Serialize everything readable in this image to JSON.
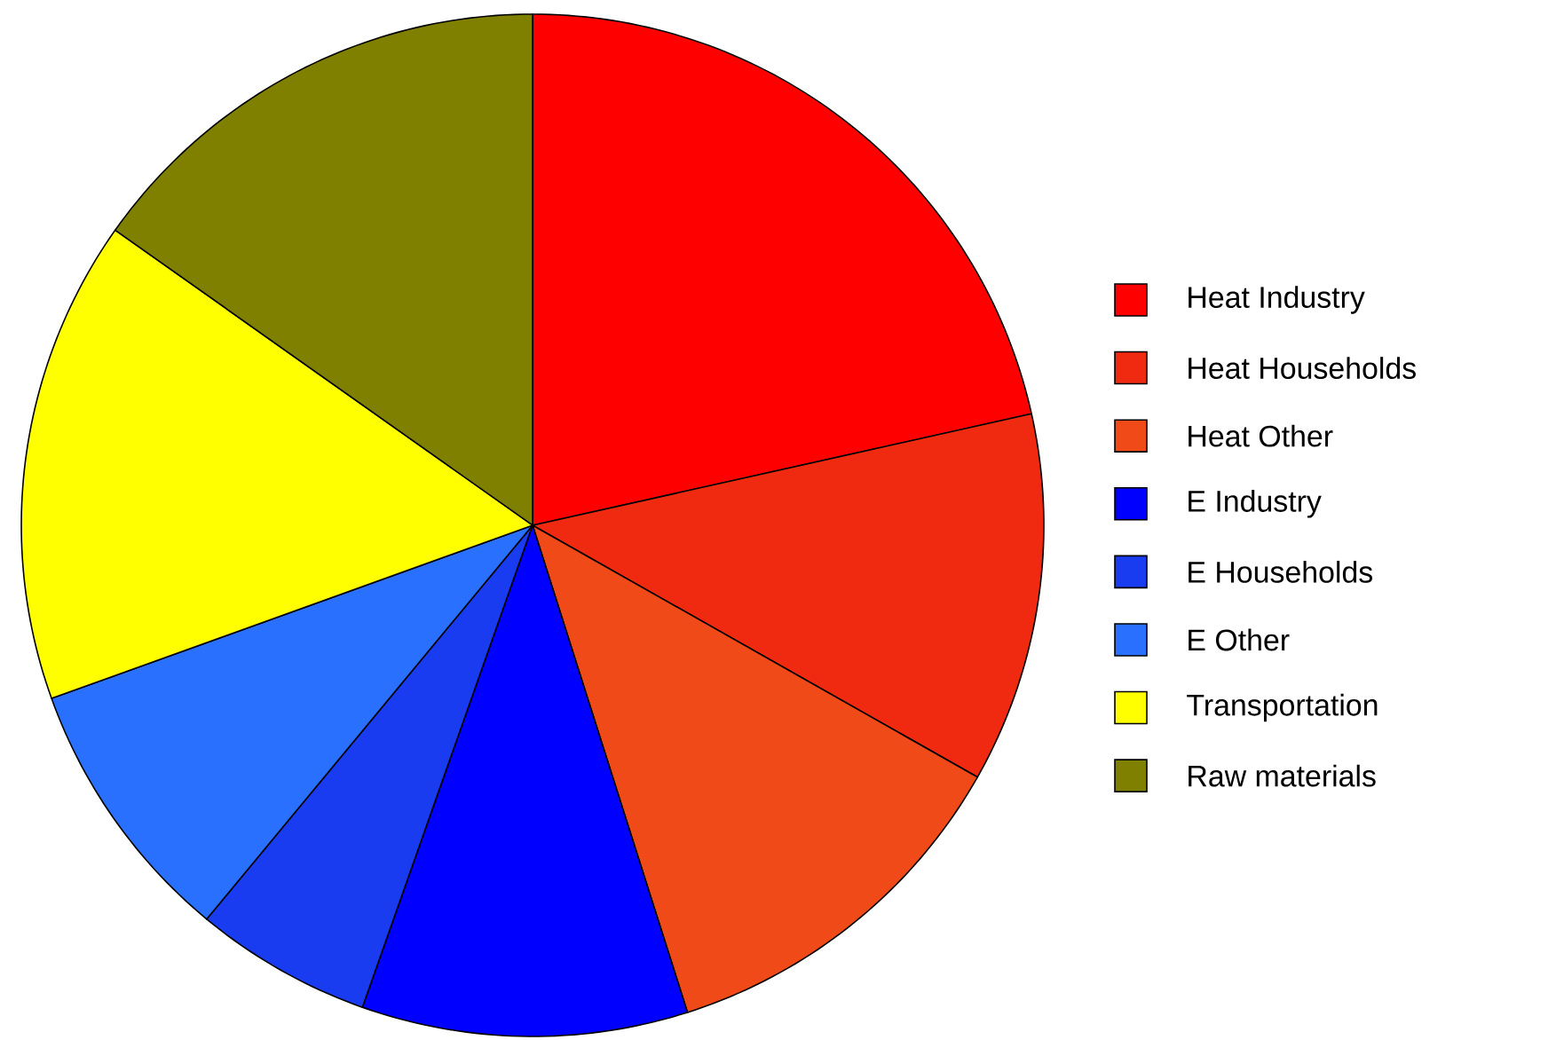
{
  "chart_data": {
    "type": "pie",
    "categories": [
      "Heat Industry",
      "Heat Households",
      "Heat Other",
      "E Industry",
      "E Households",
      "E Other",
      "Transportation",
      "Raw materials"
    ],
    "values": [
      21.5,
      11.7,
      11.9,
      10.3,
      5.6,
      8.5,
      15.3,
      15.2
    ],
    "colors": [
      "#ff0000",
      "#f02a10",
      "#f04a18",
      "#0000ff",
      "#1a3cf0",
      "#2a70ff",
      "#ffff00",
      "#808000"
    ],
    "legend": "right"
  }
}
